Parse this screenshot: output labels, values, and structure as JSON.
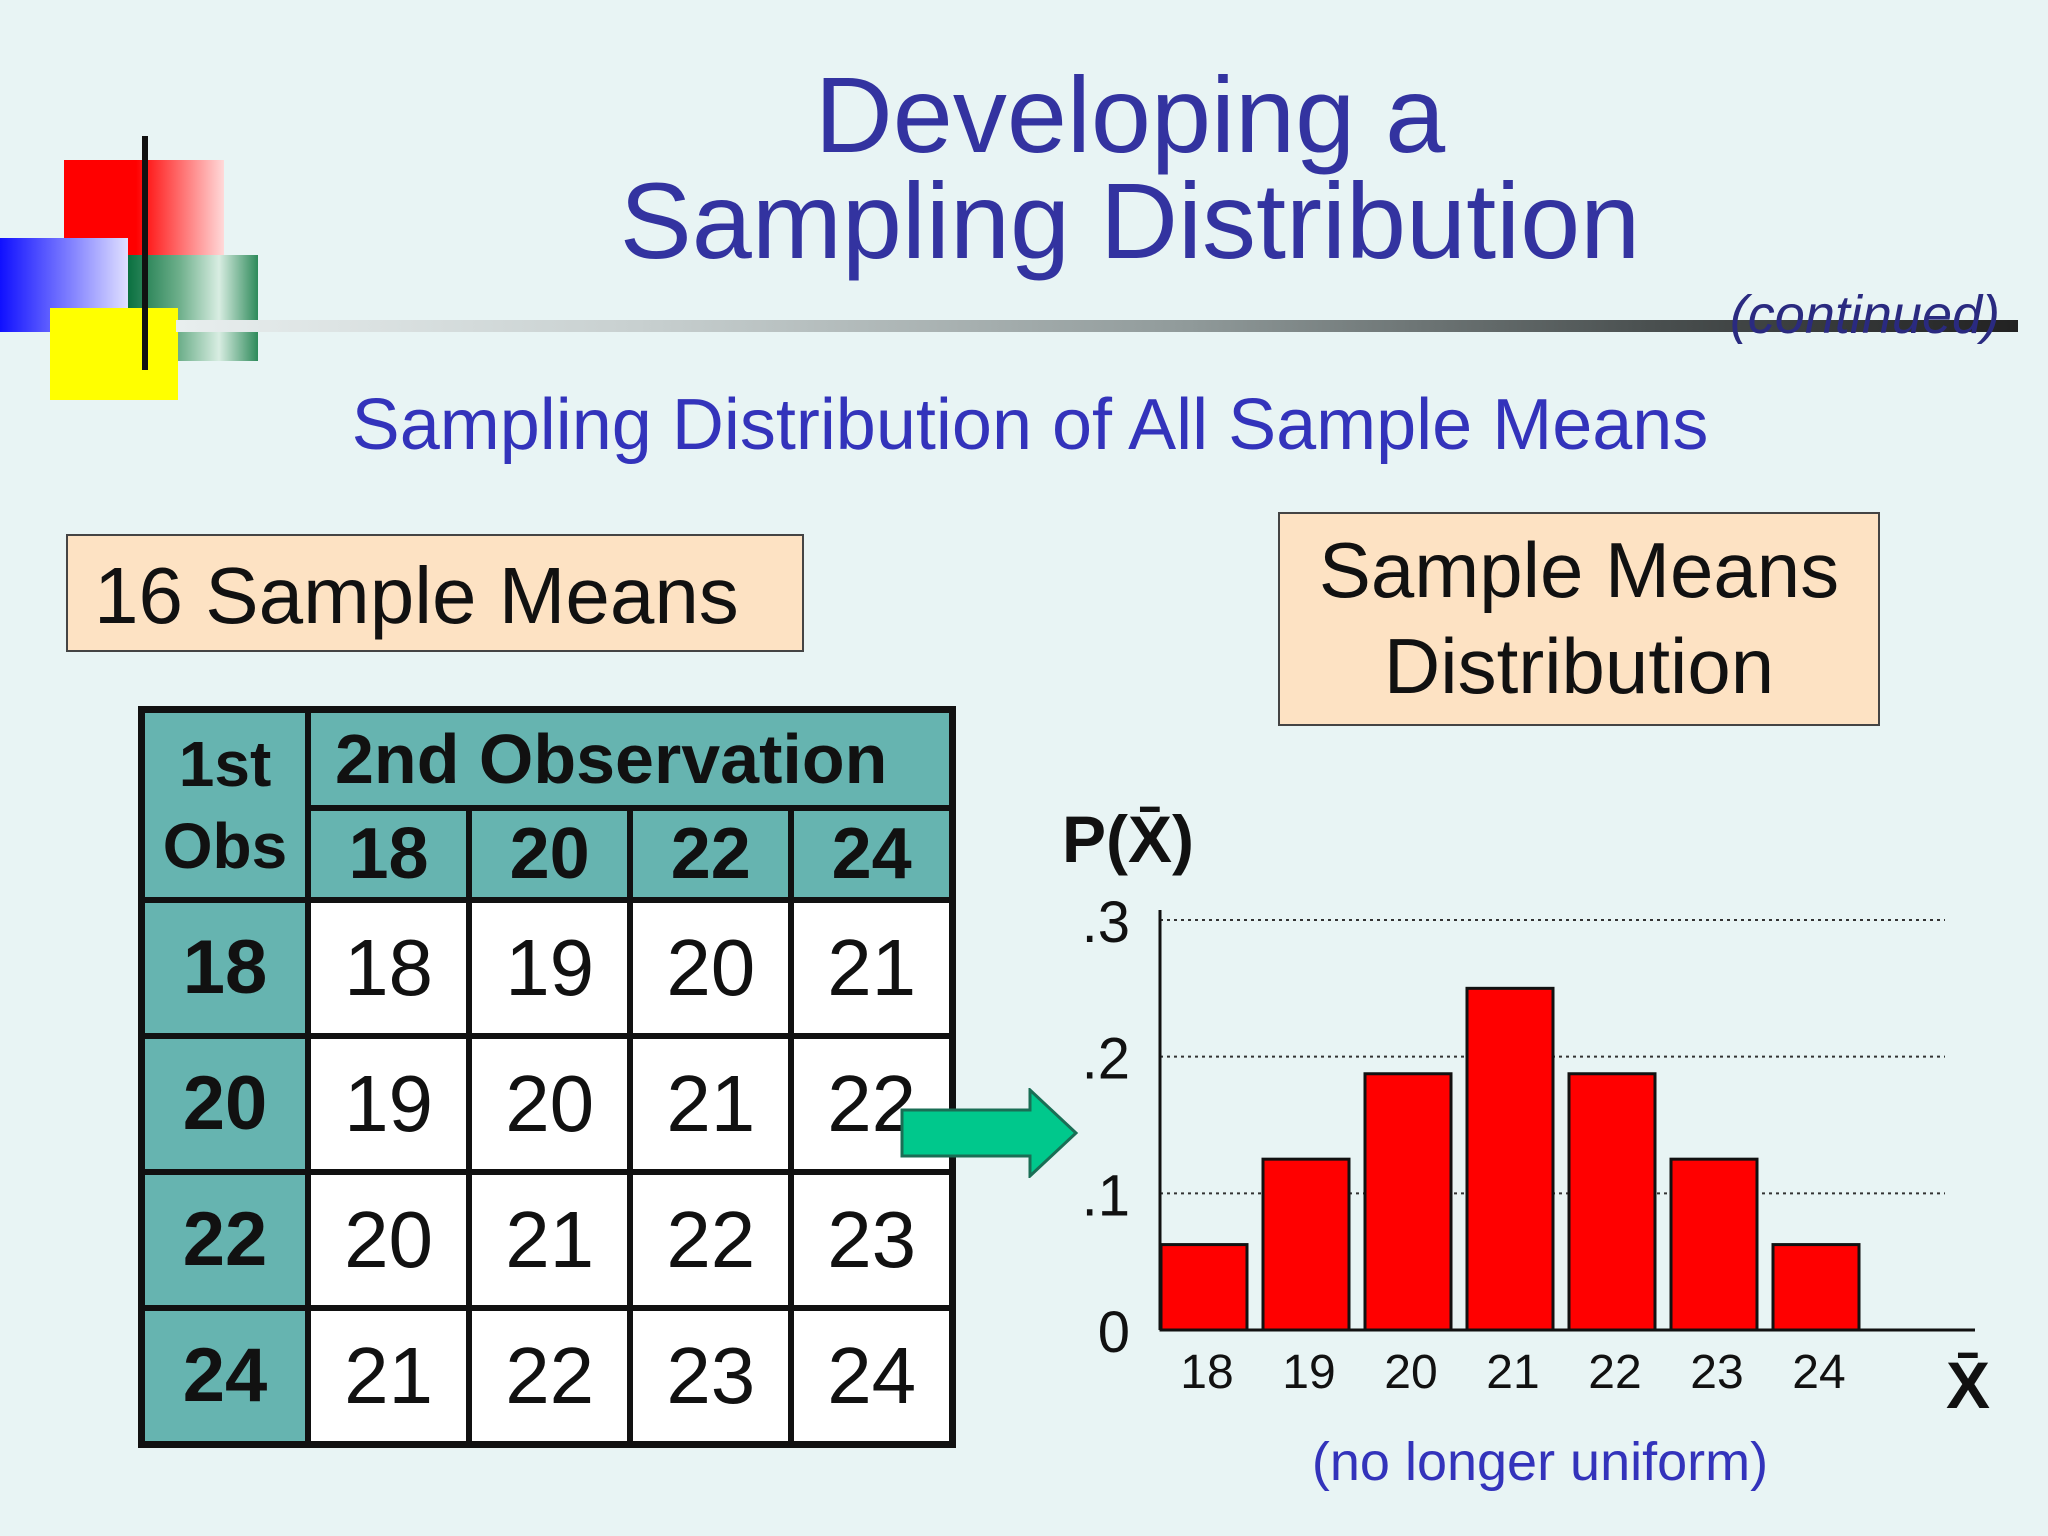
{
  "slide": {
    "title_line1": "Developing a",
    "title_line2": "Sampling Distribution",
    "continued": "(continued)",
    "subtitle": "Sampling Distribution of All Sample Means",
    "left_box": "16 Sample Means",
    "right_box_line1": "Sample Means",
    "right_box_line2": "Distribution",
    "note": "(no longer uniform)"
  },
  "table": {
    "first_obs_line1": "1st",
    "first_obs_line2": "Obs",
    "second_obs": "2nd Observation",
    "columns": [
      "18",
      "20",
      "22",
      "24"
    ],
    "rows": [
      {
        "label": "18",
        "values": [
          "18",
          "19",
          "20",
          "21"
        ]
      },
      {
        "label": "20",
        "values": [
          "19",
          "20",
          "21",
          "22"
        ]
      },
      {
        "label": "22",
        "values": [
          "20",
          "21",
          "22",
          "23"
        ]
      },
      {
        "label": "24",
        "values": [
          "21",
          "22",
          "23",
          "24"
        ]
      }
    ]
  },
  "colors": {
    "title": "#3333a0",
    "bar": "#ff0000",
    "header_fill": "#66b4b0",
    "box_fill": "#fde2c3",
    "arrow": "#00c88c"
  },
  "chart_data": {
    "type": "bar",
    "ylabel": "P(X̄)",
    "xlabel": "X̄",
    "categories": [
      "18",
      "19",
      "20",
      "21",
      "22",
      "23",
      "24"
    ],
    "values": [
      0.0625,
      0.125,
      0.1875,
      0.25,
      0.1875,
      0.125,
      0.0625
    ],
    "ylim": [
      0,
      0.3
    ],
    "yticks": [
      0,
      0.1,
      0.2,
      0.3
    ],
    "ytick_labels": [
      "0",
      ".1",
      ".2",
      ".3"
    ],
    "grid": "dotted horizontal",
    "note": "(no longer uniform)"
  }
}
